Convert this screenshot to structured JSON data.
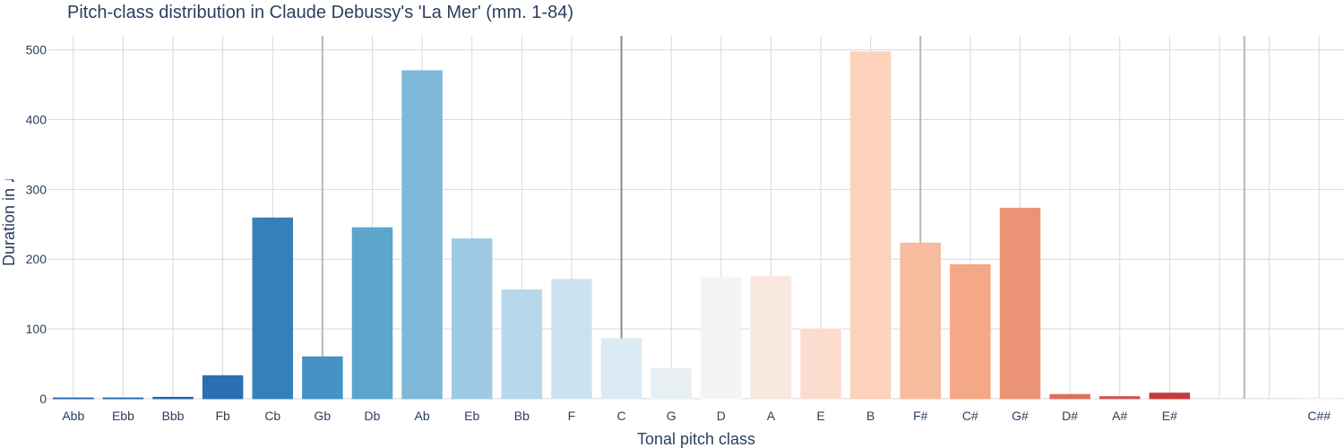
{
  "chart_data": {
    "type": "bar",
    "title": "Pitch-class distribution in Claude Debussy's 'La Mer' (mm. 1-84)",
    "xlabel": "Tonal pitch class",
    "ylabel": "Duration in ♩",
    "ylim": [
      0,
      520
    ],
    "yticks": [
      0,
      100,
      200,
      300,
      400,
      500
    ],
    "grid": true,
    "categories": [
      "Abb",
      "Ebb",
      "Bbb",
      "Fb",
      "Cb",
      "Gb",
      "Db",
      "Ab",
      "Eb",
      "Bb",
      "F",
      "C",
      "G",
      "D",
      "A",
      "E",
      "B",
      "F#",
      "C#",
      "G#",
      "D#",
      "A#",
      "E#",
      "",
      "",
      "C##"
    ],
    "values": [
      1,
      1,
      2,
      33,
      259,
      60,
      245,
      470,
      229,
      156,
      171,
      86,
      43,
      174,
      175,
      100,
      497,
      223,
      192,
      273,
      6,
      3,
      8,
      0,
      0,
      1
    ],
    "colors": [
      "#1f5fa6",
      "#1f5fa6",
      "#2463a9",
      "#2a6fb2",
      "#3480bb",
      "#4592c6",
      "#5ca5cd",
      "#7eb8d8",
      "#9dcae2",
      "#b7d8ea",
      "#cce3ef",
      "#dceaf3",
      "#e8eff4",
      "#f4f4f4",
      "#f8e8e0",
      "#fbdccf",
      "#fcd2ba",
      "#f7bb9d",
      "#f4a885",
      "#eb9375",
      "#de6f5b",
      "#d35551",
      "#c63b3b",
      "#ffffff",
      "#ffffff",
      "#f0f0f0"
    ],
    "vertical_lines": [
      {
        "category_index": 5,
        "color": "#b8b8b8"
      },
      {
        "category_index": 11,
        "color": "#8a8a8a"
      },
      {
        "category_index": 17,
        "color": "#b8b8b8"
      },
      {
        "category_index": 23.5,
        "color": "#b8b8b8"
      }
    ]
  }
}
